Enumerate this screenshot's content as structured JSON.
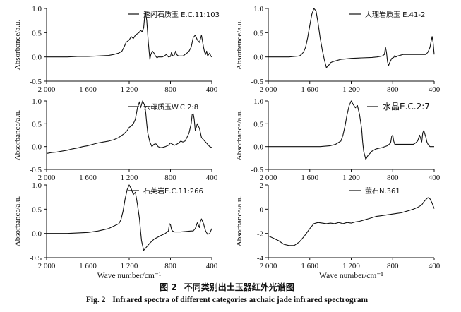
{
  "caption": {
    "zh_label": "图 2",
    "zh_text": "不同类别出土玉器红外光谱图",
    "en_label": "Fig. 2",
    "en_text": "Infrared spectra of different categories archaic jade infrared spectrogram"
  },
  "colors": {
    "line": "#111111",
    "axis": "#111111"
  },
  "chart_data": [
    {
      "type": "line",
      "panel": "top-left",
      "legend": "透闪石质玉 E.C.11:103",
      "ylabel": "Absorbance/a.u.",
      "xlabel": "",
      "xlim": [
        2000,
        400
      ],
      "ylim": [
        -0.5,
        1.0
      ],
      "xticks": [
        2000,
        1600,
        1200,
        800,
        400
      ],
      "xtick_labels": [
        "2 000",
        "1 600",
        "1 200",
        "800",
        "400"
      ],
      "yticks": [
        -0.5,
        0,
        0.5,
        1.0
      ],
      "ytick_labels": [
        "-0.5",
        "0.0",
        "0.5",
        "1.0"
      ],
      "x": [
        2000,
        1800,
        1700,
        1600,
        1500,
        1400,
        1350,
        1300,
        1270,
        1250,
        1230,
        1200,
        1180,
        1160,
        1140,
        1120,
        1105,
        1090,
        1075,
        1060,
        1045,
        1030,
        1015,
        1000,
        990,
        975,
        960,
        945,
        930,
        920,
        900,
        880,
        860,
        840,
        820,
        800,
        790,
        780,
        770,
        760,
        750,
        740,
        730,
        720,
        700,
        680,
        670,
        660,
        640,
        620,
        600,
        580,
        560,
        540,
        520,
        500,
        480,
        470,
        460,
        450,
        440,
        430,
        420,
        410,
        400
      ],
      "y": [
        0,
        0,
        0.01,
        0.01,
        0.02,
        0.03,
        0.05,
        0.08,
        0.12,
        0.2,
        0.3,
        0.35,
        0.42,
        0.38,
        0.45,
        0.48,
        0.5,
        0.55,
        0.52,
        0.6,
        0.95,
        0.75,
        0.3,
        -0.05,
        0.05,
        0.12,
        0.08,
        0.02,
        -0.02,
        0,
        0,
        0,
        0.02,
        0.05,
        0,
        0.01,
        0.1,
        0.03,
        0.02,
        0.05,
        0.12,
        0.05,
        0.03,
        0.02,
        0.02,
        0.02,
        0.03,
        0.05,
        0.08,
        0.12,
        0.2,
        0.4,
        0.45,
        0.35,
        0.3,
        0.45,
        0.2,
        0.1,
        0.05,
        0.12,
        0.02,
        0.05,
        0.08,
        0.02,
        0
      ],
      "grid": false,
      "legend_position": "top-center"
    },
    {
      "type": "line",
      "panel": "top-right",
      "legend": "大理岩质玉 E.41-2",
      "ylabel": "Absorbance/a.u.",
      "xlabel": "",
      "xlim": [
        2000,
        400
      ],
      "ylim": [
        -0.5,
        1.0
      ],
      "xticks": [
        2000,
        1600,
        1200,
        800,
        400
      ],
      "xtick_labels": [
        "2 000",
        "1 600",
        "1 200",
        "800",
        "400"
      ],
      "yticks": [
        -0.5,
        0,
        0.5,
        1.0
      ],
      "ytick_labels": [
        "-0.5",
        "0.0",
        "0.5",
        "1.0"
      ],
      "x": [
        2000,
        1900,
        1800,
        1750,
        1700,
        1680,
        1660,
        1640,
        1620,
        1600,
        1580,
        1560,
        1540,
        1520,
        1500,
        1480,
        1460,
        1440,
        1420,
        1400,
        1380,
        1350,
        1300,
        1250,
        1200,
        1100,
        1000,
        950,
        900,
        880,
        870,
        860,
        850,
        840,
        830,
        820,
        810,
        790,
        780,
        770,
        760,
        750,
        700,
        600,
        500,
        480,
        460,
        440,
        430,
        420,
        410,
        400
      ],
      "y": [
        0,
        0,
        0,
        0.01,
        0.02,
        0.05,
        0.1,
        0.2,
        0.4,
        0.65,
        0.88,
        1.0,
        0.95,
        0.7,
        0.4,
        0.15,
        -0.05,
        -0.22,
        -0.18,
        -0.12,
        -0.1,
        -0.08,
        -0.05,
        -0.04,
        -0.03,
        -0.02,
        -0.01,
        0,
        0.02,
        0.05,
        0.2,
        0.1,
        -0.1,
        -0.18,
        -0.12,
        -0.08,
        -0.03,
        -0.01,
        0.03,
        0,
        0.01,
        0.02,
        0.05,
        0.05,
        0.05,
        0.05,
        0.1,
        0.2,
        0.32,
        0.42,
        0.3,
        0.05
      ],
      "grid": false,
      "legend_position": "top-center"
    },
    {
      "type": "line",
      "panel": "middle-left",
      "legend": "云母质玉W.C.2:8",
      "ylabel": "Absorbance/a.u.",
      "xlabel": "",
      "xlim": [
        2000,
        400
      ],
      "ylim": [
        -0.5,
        1.0
      ],
      "xticks": [
        2000,
        1600,
        1200,
        800,
        400
      ],
      "xtick_labels": [
        "2 000",
        "1 600",
        "1 200",
        "800",
        "400"
      ],
      "yticks": [
        -0.5,
        0,
        0.5,
        1.0
      ],
      "ytick_labels": [
        "-0.5",
        "0.0",
        "0.5",
        "1.0"
      ],
      "x": [
        2000,
        1950,
        1900,
        1850,
        1800,
        1750,
        1700,
        1650,
        1600,
        1550,
        1500,
        1450,
        1400,
        1350,
        1300,
        1250,
        1220,
        1200,
        1180,
        1160,
        1140,
        1120,
        1100,
        1090,
        1080,
        1070,
        1060,
        1050,
        1040,
        1030,
        1020,
        1000,
        980,
        960,
        940,
        920,
        900,
        880,
        850,
        820,
        800,
        780,
        760,
        740,
        720,
        700,
        680,
        660,
        640,
        620,
        600,
        590,
        580,
        570,
        560,
        540,
        520,
        500,
        480,
        460,
        440,
        420,
        400
      ],
      "y": [
        -0.15,
        -0.13,
        -0.12,
        -0.1,
        -0.08,
        -0.05,
        -0.03,
        0,
        0.02,
        0.05,
        0.08,
        0.1,
        0.12,
        0.15,
        0.2,
        0.28,
        0.35,
        0.42,
        0.45,
        0.5,
        0.6,
        0.85,
        0.98,
        0.85,
        0.92,
        1.0,
        0.95,
        0.9,
        0.75,
        0.5,
        0.3,
        0.1,
        0,
        0.05,
        0.06,
        0,
        -0.02,
        -0.02,
        0,
        0.03,
        0.08,
        0.05,
        0.03,
        0.05,
        0.08,
        0.12,
        0.1,
        0.12,
        0.2,
        0.3,
        0.5,
        0.7,
        0.72,
        0.6,
        0.35,
        0.5,
        0.4,
        0.2,
        0.15,
        0.1,
        0.05,
        0,
        -0.02
      ],
      "grid": false,
      "legend_position": "top-center"
    },
    {
      "type": "line",
      "panel": "middle-right",
      "legend": "水晶E.C.2:7",
      "ylabel": "Absorbance/a.u.",
      "xlabel": "",
      "xlim": [
        2000,
        400
      ],
      "ylim": [
        -0.5,
        1.0
      ],
      "xticks": [
        2000,
        1600,
        1200,
        800,
        400
      ],
      "xtick_labels": [
        "2 000",
        "1 600",
        "1 200",
        "800",
        "400"
      ],
      "yticks": [
        -0.5,
        0,
        0.5,
        1.0
      ],
      "ytick_labels": [
        "-0.5",
        "0.0",
        "0.5",
        "1.0"
      ],
      "x": [
        2000,
        1800,
        1600,
        1500,
        1400,
        1350,
        1300,
        1280,
        1260,
        1240,
        1220,
        1200,
        1180,
        1160,
        1140,
        1120,
        1100,
        1090,
        1080,
        1060,
        1040,
        1000,
        960,
        900,
        850,
        820,
        810,
        800,
        790,
        780,
        770,
        760,
        700,
        600,
        580,
        560,
        540,
        520,
        510,
        500,
        480,
        470,
        460,
        450,
        440,
        420,
        400
      ],
      "y": [
        0,
        0,
        0,
        0,
        0.02,
        0.05,
        0.12,
        0.25,
        0.45,
        0.7,
        0.9,
        1.0,
        0.92,
        0.85,
        0.9,
        0.7,
        0.4,
        0.1,
        -0.1,
        -0.28,
        -0.2,
        -0.1,
        -0.05,
        -0.02,
        0.02,
        0.08,
        0.22,
        0.25,
        0.12,
        0.05,
        0.05,
        0.05,
        0.05,
        0.05,
        0.08,
        0.12,
        0.25,
        0.1,
        0.3,
        0.35,
        0.2,
        0.1,
        0.05,
        0.02,
        0,
        0,
        0
      ],
      "grid": false,
      "legend_position": "top-right"
    },
    {
      "type": "line",
      "panel": "bottom-left",
      "legend": "石英岩E.C.11:266",
      "ylabel": "Absorbance/a.u.",
      "xlabel": "Wave number/cm⁻¹",
      "xlim": [
        2000,
        400
      ],
      "ylim": [
        -0.5,
        1.0
      ],
      "xticks": [
        2000,
        1600,
        1200,
        800,
        400
      ],
      "xtick_labels": [
        "2 000",
        "1 600",
        "1 200",
        "800",
        "400"
      ],
      "yticks": [
        -0.5,
        0,
        0.5,
        1.0
      ],
      "ytick_labels": [
        "-0.5",
        "0.0",
        "0.5",
        "1.0"
      ],
      "x": [
        2000,
        1800,
        1600,
        1500,
        1400,
        1350,
        1300,
        1280,
        1260,
        1240,
        1220,
        1200,
        1180,
        1160,
        1140,
        1120,
        1100,
        1090,
        1080,
        1060,
        1040,
        1000,
        960,
        900,
        850,
        820,
        810,
        800,
        790,
        780,
        760,
        700,
        600,
        580,
        560,
        540,
        520,
        510,
        500,
        480,
        460,
        440,
        420,
        410,
        400
      ],
      "y": [
        0,
        0,
        0.02,
        0.05,
        0.1,
        0.15,
        0.2,
        0.28,
        0.45,
        0.7,
        0.9,
        1.0,
        0.92,
        0.8,
        0.85,
        0.6,
        0.3,
        0.05,
        -0.15,
        -0.35,
        -0.3,
        -0.2,
        -0.12,
        -0.05,
        0,
        0.05,
        0.2,
        0.18,
        0.08,
        0.05,
        0.03,
        0.03,
        0.05,
        0.05,
        0.1,
        0.22,
        0.12,
        0.25,
        0.3,
        0.2,
        0.05,
        -0.02,
        0,
        0.05,
        0.1
      ],
      "grid": false,
      "legend_position": "top-center"
    },
    {
      "type": "line",
      "panel": "bottom-right",
      "legend": "萤石N.361",
      "ylabel": "Absorbance/a.u.",
      "xlabel": "Wave number/cm⁻¹",
      "xlim": [
        2000,
        400
      ],
      "ylim": [
        -4,
        2
      ],
      "xticks": [
        2000,
        1600,
        1200,
        800,
        400
      ],
      "xtick_labels": [
        "2 000",
        "1 600",
        "1 200",
        "800",
        "400"
      ],
      "yticks": [
        -4,
        -2,
        0,
        2
      ],
      "ytick_labels": [
        "-4",
        "-2",
        "0",
        "2"
      ],
      "x": [
        2000,
        1950,
        1900,
        1850,
        1800,
        1750,
        1700,
        1650,
        1600,
        1560,
        1520,
        1480,
        1440,
        1400,
        1360,
        1320,
        1280,
        1240,
        1200,
        1160,
        1120,
        1080,
        1040,
        1000,
        960,
        920,
        880,
        840,
        800,
        760,
        720,
        680,
        640,
        600,
        560,
        520,
        500,
        480,
        460,
        440,
        420,
        400
      ],
      "y": [
        -2.2,
        -2.4,
        -2.6,
        -2.9,
        -3.0,
        -3.0,
        -2.7,
        -2.2,
        -1.6,
        -1.2,
        -1.1,
        -1.15,
        -1.2,
        -1.15,
        -1.2,
        -1.1,
        -1.2,
        -1.1,
        -1.15,
        -1.05,
        -1.0,
        -0.9,
        -0.8,
        -0.7,
        -0.6,
        -0.55,
        -0.5,
        -0.45,
        -0.4,
        -0.35,
        -0.3,
        -0.2,
        -0.1,
        0.0,
        0.15,
        0.35,
        0.6,
        0.8,
        0.95,
        0.85,
        0.5,
        0.05
      ],
      "grid": false,
      "legend_position": "top-center"
    }
  ]
}
